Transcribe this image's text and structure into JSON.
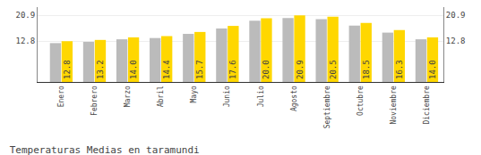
{
  "chart_data": {
    "type": "bar",
    "title": "Temperaturas Medias en taramundi",
    "categories": [
      "Enero",
      "Febrero",
      "Marzo",
      "Abril",
      "Mayo",
      "Junio",
      "Julio",
      "Agosto",
      "Septiembre",
      "Octubre",
      "Noviembre",
      "Diciembre"
    ],
    "series": [
      {
        "color": "#BBBBBB",
        "values": [
          12.2,
          12.6,
          13.4,
          13.8,
          15.1,
          16.8,
          19.2,
          20.1,
          19.7,
          17.7,
          15.5,
          13.4
        ]
      },
      {
        "color": "#FFD700",
        "values": [
          12.8,
          13.2,
          14.0,
          14.4,
          15.7,
          17.6,
          20.0,
          20.9,
          20.5,
          18.5,
          16.3,
          14.0
        ],
        "value_labels": [
          "12.8",
          "13.2",
          "14.0",
          "14.4",
          "15.7",
          "17.6",
          "20.0",
          "20.9",
          "20.5",
          "18.5",
          "16.3",
          "14.0"
        ]
      }
    ],
    "data_labels": true,
    "ylim": [
      0,
      23.5
    ],
    "yticks": [
      12.8,
      20.9
    ],
    "y2lim": [
      0,
      23.5
    ],
    "y2ticks": [
      12.8,
      20.9
    ],
    "grid": true
  }
}
